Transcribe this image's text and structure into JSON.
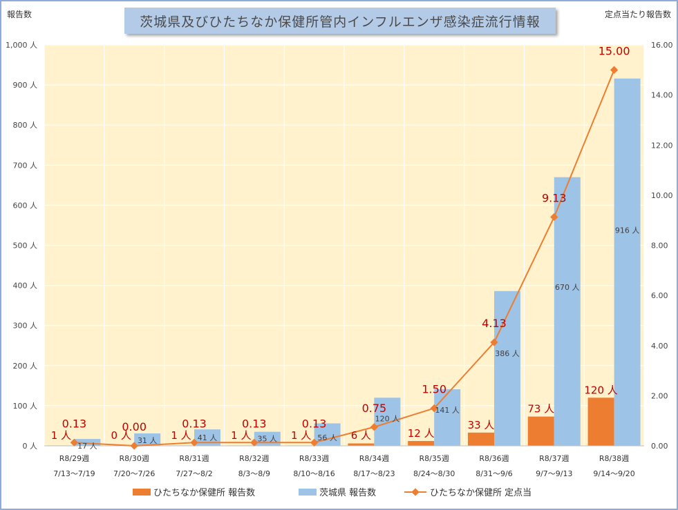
{
  "title": "茨城県及びひたちなか保健所管内インフルエンザ感染症流行情報",
  "left_axis_title": "報告数",
  "right_axis_title": "定点当たり報告数",
  "colors": {
    "plot_bg": "#fff2cc",
    "orange": "#ed7d31",
    "blue": "#9dc3e6",
    "label_red": "#c00000",
    "grid": "#ffffff"
  },
  "chart_data": {
    "type": "bar",
    "title": "茨城県及びひたちなか保健所管内インフルエンザ感染症流行情報",
    "ylabel": "報告数",
    "y2label": "定点当たり報告数",
    "ylim": [
      0,
      1000
    ],
    "y2lim": [
      0,
      16
    ],
    "grid": true,
    "legend_position": "bottom",
    "categories": [
      [
        "R8/29週",
        "7/13～7/19"
      ],
      [
        "R8/30週",
        "7/20～7/26"
      ],
      [
        "R8/31週",
        "7/27～8/2"
      ],
      [
        "R8/32週",
        "8/3～8/9"
      ],
      [
        "R8/33週",
        "8/10～8/16"
      ],
      [
        "R8/34週",
        "8/17～8/23"
      ],
      [
        "R8/35週",
        "8/24～8/30"
      ],
      [
        "R8/36週",
        "8/31～9/6"
      ],
      [
        "R8/37週",
        "9/7～9/13"
      ],
      [
        "R8/38週",
        "9/14～9/20"
      ]
    ],
    "y_ticks": [
      "0 人",
      "100 人",
      "200 人",
      "300 人",
      "400 人",
      "500 人",
      "600 人",
      "700 人",
      "800 人",
      "900 人",
      "1,000 人"
    ],
    "y_tick_values": [
      0,
      100,
      200,
      300,
      400,
      500,
      600,
      700,
      800,
      900,
      1000
    ],
    "y2_ticks": [
      "0.00",
      "2.00",
      "4.00",
      "6.00",
      "8.00",
      "10.00",
      "12.00",
      "14.00",
      "16.00"
    ],
    "y2_tick_values": [
      0,
      2,
      4,
      6,
      8,
      10,
      12,
      14,
      16
    ],
    "series": [
      {
        "name": "ひたちなか保健所 報告数",
        "type": "bar",
        "axis": "left",
        "values": [
          1,
          0,
          1,
          1,
          1,
          6,
          12,
          33,
          73,
          120
        ],
        "labels": [
          "1 人",
          "0 人",
          "1 人",
          "1 人",
          "1 人",
          "6 人",
          "12 人",
          "33 人",
          "73 人",
          "120 人"
        ]
      },
      {
        "name": "茨城県 報告数",
        "type": "bar",
        "axis": "left",
        "values": [
          17,
          31,
          41,
          35,
          56,
          120,
          141,
          386,
          670,
          916
        ],
        "labels": [
          "17 人",
          "31 人",
          "41 人",
          "35 人",
          "56 人",
          "120 人",
          "141 人",
          "386 人",
          "670 人",
          "916 人"
        ]
      },
      {
        "name": "ひたちなか保健所 定点当",
        "type": "line",
        "axis": "right",
        "values": [
          0.13,
          0.0,
          0.13,
          0.13,
          0.13,
          0.75,
          1.5,
          4.13,
          9.13,
          15.0
        ],
        "labels": [
          "0.13",
          "0.00",
          "0.13",
          "0.13",
          "0.13",
          "0.75",
          "1.50",
          "4.13",
          "9.13",
          "15.00"
        ]
      }
    ]
  }
}
